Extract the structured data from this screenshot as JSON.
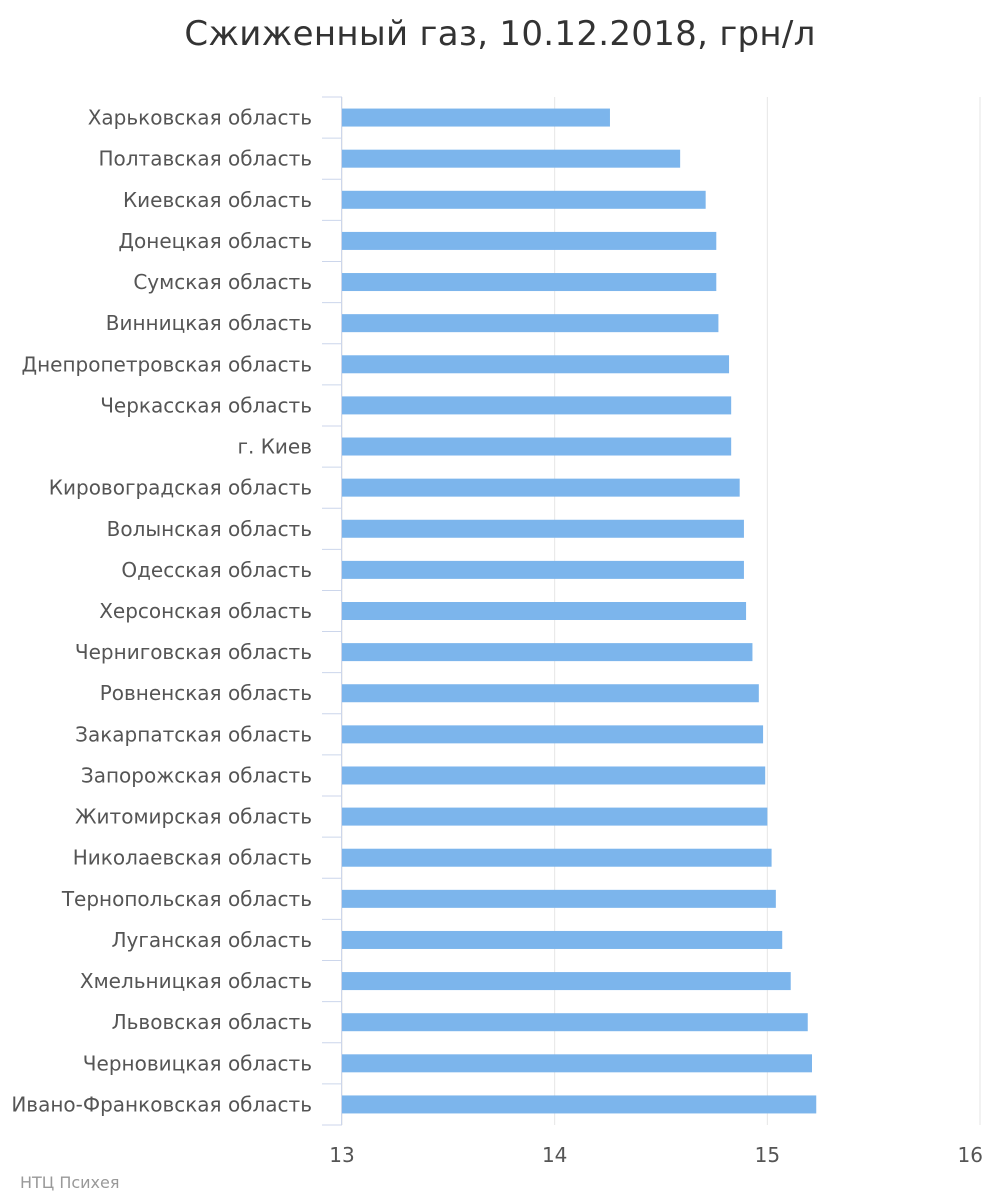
{
  "chart_data": {
    "type": "bar",
    "orientation": "horizontal",
    "title": "Сжиженный газ, 10.12.2018, грн/л",
    "categories": [
      "Харьковская область",
      "Полтавская область",
      "Киевская область",
      "Донецкая область",
      "Сумская область",
      "Винницкая область",
      "Днепропетровская область",
      "Черкасская область",
      "г. Киев",
      "Кировоградская область",
      "Волынская область",
      "Одесская область",
      "Херсонская область",
      "Черниговская область",
      "Ровненская область",
      "Закарпатская область",
      "Запорожская область",
      "Житомирская область",
      "Николаевская область",
      "Тернопольская область",
      "Луганская область",
      "Хмельницкая область",
      "Львовская область",
      "Черновицкая область",
      "Ивано-Франковская область"
    ],
    "values": [
      14.26,
      14.59,
      14.71,
      14.76,
      14.76,
      14.77,
      14.82,
      14.83,
      14.83,
      14.87,
      14.89,
      14.89,
      14.9,
      14.93,
      14.96,
      14.98,
      14.99,
      15.0,
      15.02,
      15.04,
      15.07,
      15.11,
      15.19,
      15.21,
      15.23
    ],
    "xlim": [
      13,
      16
    ],
    "xticks": [
      "13",
      "14",
      "15",
      "16"
    ],
    "bar_color": "#7cb5ec",
    "grid": true
  },
  "credits": "НТЦ Психея"
}
